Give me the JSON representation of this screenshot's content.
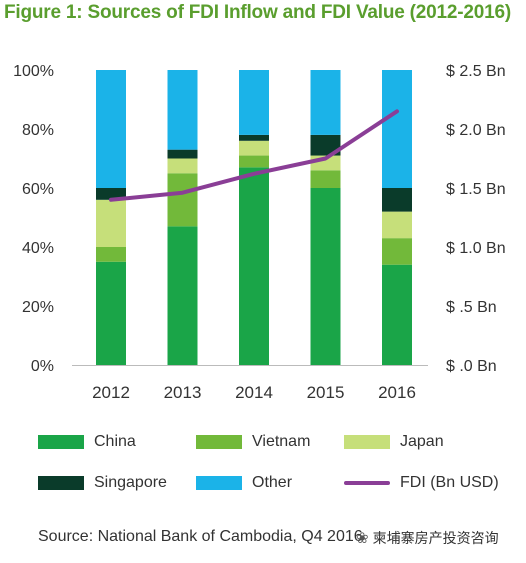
{
  "title": "Figure 1: Sources of FDI Inflow and FDI Value (2012-2016)",
  "source": "Source: National Bank of Cambodia, Q4 2016",
  "watermark": "柬埔寨房产投资咨询",
  "colors": {
    "title": "#5a9e2e",
    "China": "#1aa548",
    "Vietnam": "#72b93a",
    "Japan": "#c6df7a",
    "Singapore": "#0a3b2a",
    "Other": "#1bb3e8",
    "FDI": "#8a3e96"
  },
  "chart_data": {
    "type": "bar",
    "stacked": true,
    "categories": [
      "2012",
      "2013",
      "2014",
      "2015",
      "2016"
    ],
    "series": [
      {
        "name": "China",
        "values": [
          35,
          47,
          67,
          60,
          34
        ]
      },
      {
        "name": "Vietnam",
        "values": [
          5,
          18,
          4,
          6,
          9
        ]
      },
      {
        "name": "Japan",
        "values": [
          16,
          5,
          5,
          5,
          9
        ]
      },
      {
        "name": "Singapore",
        "values": [
          4,
          3,
          2,
          7,
          8
        ]
      },
      {
        "name": "Other",
        "values": [
          40,
          27,
          22,
          22,
          40
        ]
      }
    ],
    "line_series": {
      "name": "FDI (Bn USD)",
      "values": [
        1.4,
        1.46,
        1.62,
        1.75,
        2.15
      ],
      "axis": "right"
    },
    "y_left": {
      "ticks": [
        "0%",
        "20%",
        "40%",
        "60%",
        "80%",
        "100%"
      ],
      "ylim": [
        0,
        100
      ]
    },
    "y_right": {
      "ticks": [
        "$ .0 Bn",
        "$ .5 Bn",
        "$ 1.0 Bn",
        "$ 1.5 Bn",
        "$ 2.0 Bn",
        "$ 2.5 Bn"
      ],
      "ylim": [
        0,
        2.5
      ]
    },
    "legend": {
      "position": "bottom",
      "items": [
        {
          "label": "China",
          "kind": "bar",
          "key": "China"
        },
        {
          "label": "Vietnam",
          "kind": "bar",
          "key": "Vietnam"
        },
        {
          "label": "Japan",
          "kind": "bar",
          "key": "Japan"
        },
        {
          "label": "Singapore",
          "kind": "bar",
          "key": "Singapore"
        },
        {
          "label": "Other",
          "kind": "bar",
          "key": "Other"
        },
        {
          "label": "FDI (Bn USD)",
          "kind": "line",
          "key": "FDI"
        }
      ]
    }
  }
}
